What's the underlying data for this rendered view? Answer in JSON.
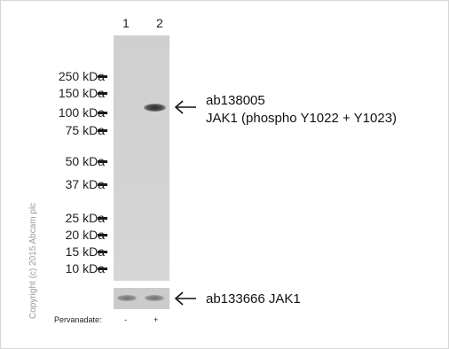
{
  "lanes": {
    "lane1": "1",
    "lane2": "2"
  },
  "markers": [
    "250 kDa",
    "150 kDa",
    "100 kDa",
    "75 kDa",
    "50 kDa",
    "37 kDa",
    "25 kDa",
    "20 kDa",
    "15 kDa",
    "10 kDa"
  ],
  "annotations": {
    "primary_catalog": "ab138005",
    "primary_target": "JAK1 (phospho  Y1022 + Y1023)",
    "secondary": "ab133666  JAK1"
  },
  "copyright": "Copyright (c) 2015 Abcam plc",
  "treatment": {
    "label": "Pervanadate:",
    "lane1": "-",
    "lane2": "+"
  }
}
